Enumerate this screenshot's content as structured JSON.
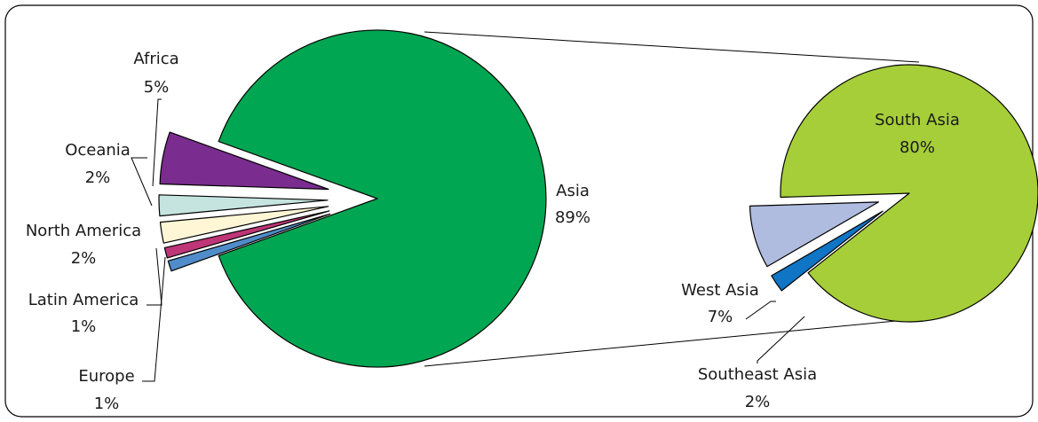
{
  "chart_data": [
    {
      "type": "pie",
      "slices": [
        {
          "label": "Asia",
          "value_label": "89%",
          "value": 89,
          "color": "#00A651"
        },
        {
          "label": "Africa",
          "value_label": "5%",
          "value": 5,
          "color": "#7B2C8F"
        },
        {
          "label": "Oceania",
          "value_label": "2%",
          "value": 2,
          "color": "#C5E4E0"
        },
        {
          "label": "North America",
          "value_label": "2%",
          "value": 2,
          "color": "#FFF6D5"
        },
        {
          "label": "Latin America",
          "value_label": "1%",
          "value": 1,
          "color": "#BE3677"
        },
        {
          "label": "Europe",
          "value_label": "1%",
          "value": 1,
          "color": "#4F8CC9"
        }
      ]
    },
    {
      "type": "pie",
      "slices": [
        {
          "label": "South Asia",
          "value_label": "80%",
          "value": 80,
          "color": "#A6CE39"
        },
        {
          "label": "West Asia",
          "value_label": "7%",
          "value": 7,
          "color": "#AFBCE0"
        },
        {
          "label": "Southeast Asia",
          "value_label": "2%",
          "value": 2,
          "color": "#0F75C4"
        }
      ]
    }
  ]
}
